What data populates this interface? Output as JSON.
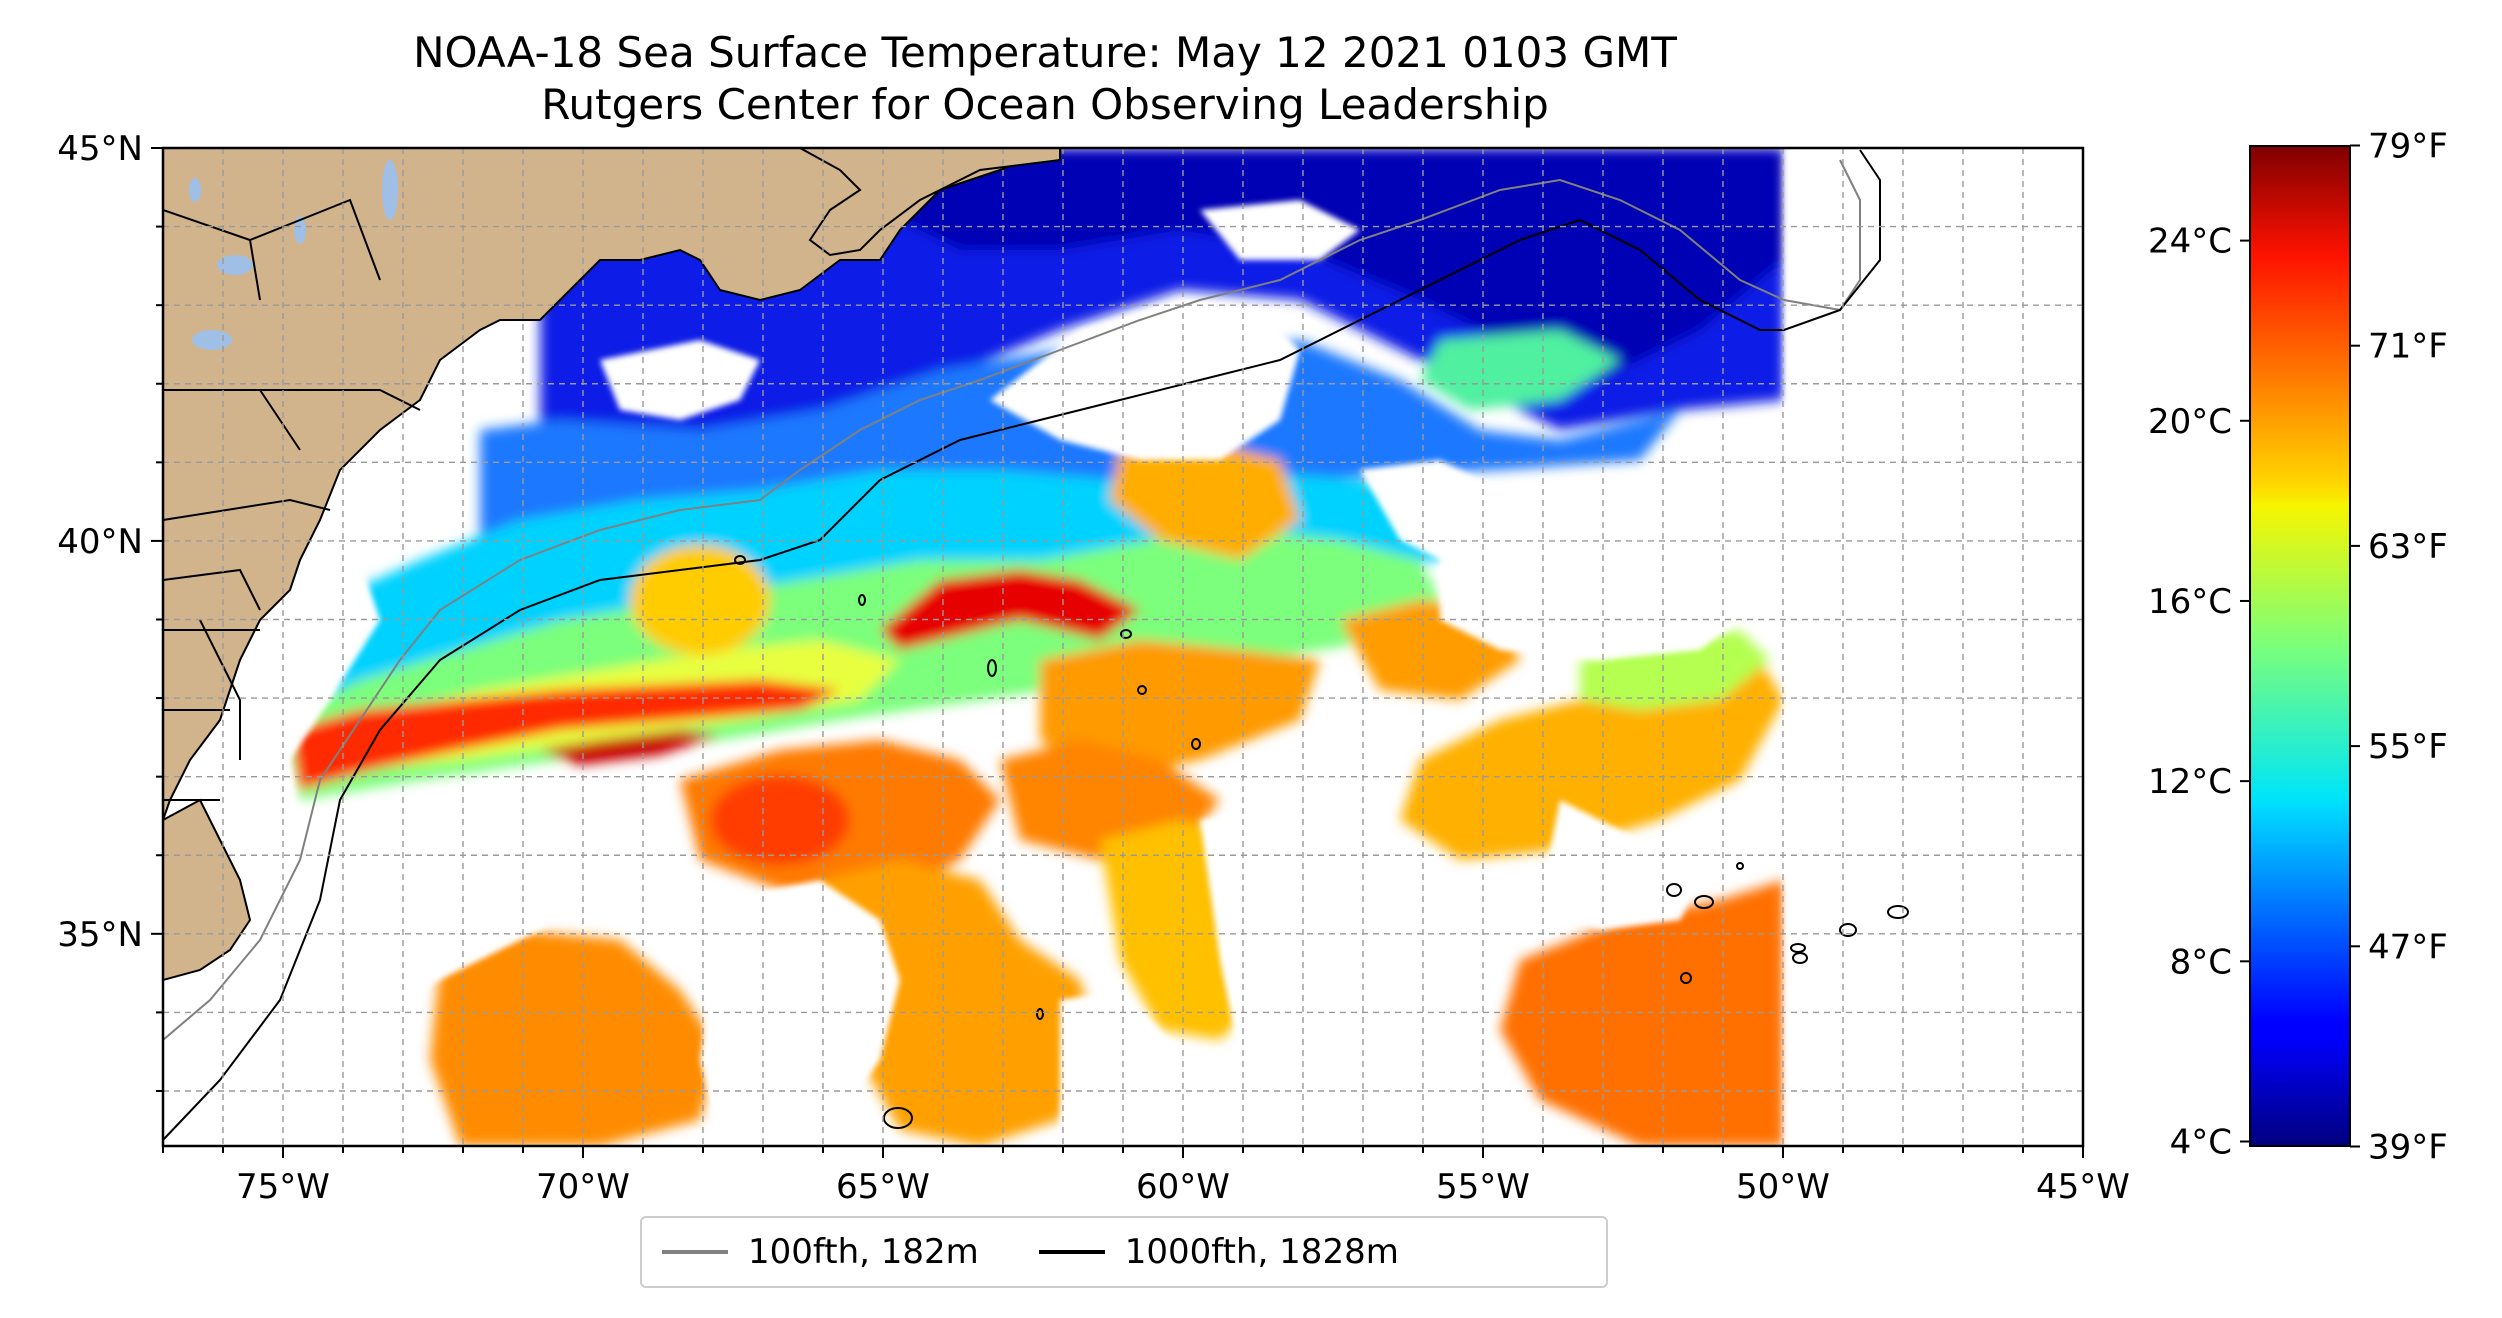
{
  "title": {
    "line1": "NOAA-18 Sea Surface Temperature: May 12 2021 0103 GMT",
    "line2": "Rutgers Center for Ocean Observing Leadership"
  },
  "map": {
    "lon_range": [
      -77,
      -45
    ],
    "lat_range": [
      32.3,
      45
    ],
    "x_ticks": [
      "75°W",
      "70°W",
      "65°W",
      "60°W",
      "55°W",
      "50°W",
      "45°W"
    ],
    "x_tick_values": [
      -75,
      -70,
      -65,
      -60,
      -55,
      -50,
      -45
    ],
    "y_ticks": [
      "45°N",
      "40°N",
      "35°N"
    ],
    "y_tick_values": [
      45,
      40,
      35
    ],
    "grid": "dashed, every 1 degree",
    "land_color": "#d2b48c",
    "lake_color": "#9fbfe6"
  },
  "colorbar": {
    "celsius_range": [
      3.9,
      26.1
    ],
    "celsius_ticks": [
      "24°C",
      "20°C",
      "16°C",
      "12°C",
      "8°C",
      "4°C"
    ],
    "celsius_values": [
      24,
      20,
      16,
      12,
      8,
      4
    ],
    "fahrenheit_ticks": [
      "79°F",
      "71°F",
      "63°F",
      "55°F",
      "47°F",
      "39°F"
    ],
    "fahrenheit_values": [
      79,
      71,
      63,
      55,
      47,
      39
    ],
    "colormap": "jet"
  },
  "legend": {
    "items": [
      {
        "label": "100fth, 182m",
        "color": "#808080"
      },
      {
        "label": "1000fth, 1828m",
        "color": "#000000"
      }
    ]
  }
}
